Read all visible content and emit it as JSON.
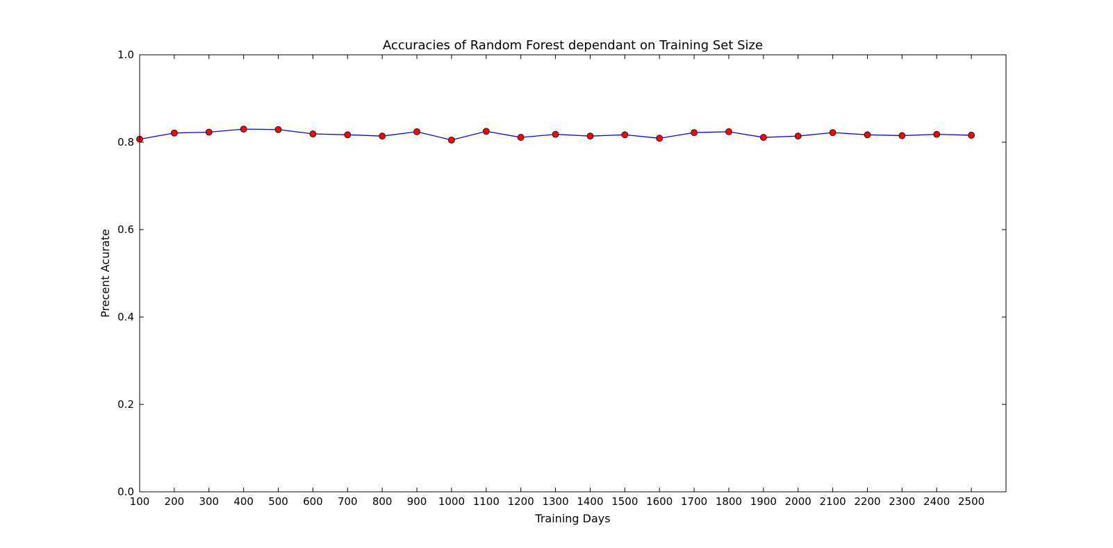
{
  "chart_data": {
    "type": "line",
    "title": "Accuracies of Random Forest dependant on Training Set Size",
    "xlabel": "Training Days",
    "ylabel": "Precent Acurate",
    "xlim": [
      100,
      2600
    ],
    "ylim": [
      0.0,
      1.0
    ],
    "xticks": [
      "100",
      "200",
      "300",
      "400",
      "500",
      "600",
      "700",
      "800",
      "900",
      "1000",
      "1100",
      "1200",
      "1300",
      "1400",
      "1500",
      "1600",
      "1700",
      "1800",
      "1900",
      "2000",
      "2100",
      "2200",
      "2300",
      "2400",
      "2500"
    ],
    "yticks": [
      "0.0",
      "0.2",
      "0.4",
      "0.6",
      "0.8",
      "1.0"
    ],
    "grid": false,
    "series": [
      {
        "line_color": "#0000ff",
        "marker_color": "#ff0000",
        "marker_edge_color": "#000000",
        "x": [
          100,
          200,
          300,
          400,
          500,
          600,
          700,
          800,
          900,
          1000,
          1100,
          1200,
          1300,
          1400,
          1500,
          1600,
          1700,
          1800,
          1900,
          2000,
          2100,
          2200,
          2300,
          2400,
          2500
        ],
        "values": [
          0.807,
          0.821,
          0.823,
          0.83,
          0.829,
          0.819,
          0.817,
          0.814,
          0.824,
          0.805,
          0.825,
          0.811,
          0.818,
          0.814,
          0.817,
          0.809,
          0.822,
          0.824,
          0.811,
          0.814,
          0.822,
          0.817,
          0.815,
          0.818,
          0.816
        ]
      }
    ]
  }
}
